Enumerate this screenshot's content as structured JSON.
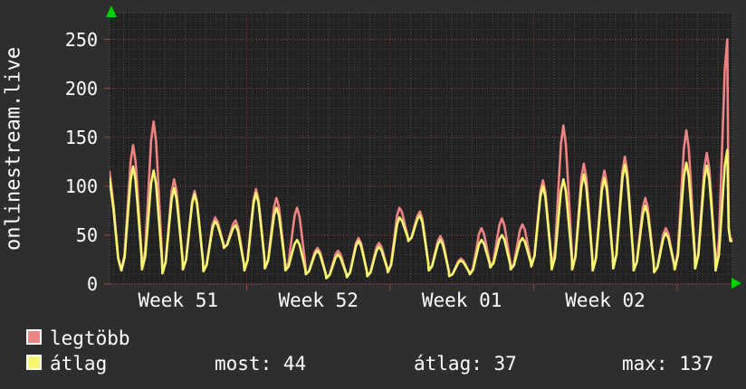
{
  "title_vertical": "onlinestream.live",
  "colors": {
    "background": "#2e2e2e",
    "plot_background": "#222222",
    "grid_minor": "#3e3e3e",
    "grid_day": "#585858",
    "grid_major_red": "#9e4343",
    "grid_week_red": "#8c3a3a",
    "axis_arrow_green": "#00d200",
    "text": "#ffffff",
    "series_max": "#f08383",
    "series_avg": "#f6f671"
  },
  "legend": {
    "series": [
      {
        "label": "legtöbb"
      },
      {
        "label": "átlag"
      }
    ],
    "stats": [
      {
        "label": "most",
        "value": 44,
        "text": "most: 44"
      },
      {
        "label": "átlag",
        "value": 37,
        "text": "átlag: 37"
      },
      {
        "label": "max",
        "value": 137,
        "text": "max: 137"
      }
    ]
  },
  "chart_data": {
    "type": "line",
    "title": "onlinestream.live",
    "ylabel": "onlinestream.live",
    "x_axis": {
      "tick_labels": [
        "Week 51",
        "Week 52",
        "Week 01",
        "Week 02"
      ],
      "days_total": 30.4,
      "first_day_boundary_offset": 0.694,
      "week_boundaries_days": [
        6.694,
        13.694,
        20.694,
        27.694
      ],
      "minor_step_days": 0.25
    },
    "y_axis": {
      "ticks": [
        0,
        50,
        100,
        150,
        200,
        250
      ],
      "ylim": [
        0,
        277
      ],
      "minor_step": 10,
      "grid": true
    },
    "legend_position": "bottom-left",
    "series": [
      {
        "name": "legtöbb",
        "color": "#f08383",
        "start": 115,
        "end": 46,
        "daily_peaks": [
          142,
          166,
          107,
          95,
          68,
          65,
          97,
          88,
          78,
          37,
          34,
          47,
          42,
          78,
          74,
          49,
          26,
          57,
          67,
          61,
          106,
          162,
          123,
          116,
          130,
          88,
          57,
          157,
          134,
          250
        ],
        "daily_valleys": [
          14,
          15,
          11,
          15,
          13,
          37,
          14,
          16,
          14,
          10,
          6,
          7,
          8,
          12,
          44,
          14,
          8,
          10,
          17,
          15,
          18,
          15,
          15,
          14,
          16,
          14,
          12,
          15,
          16,
          14
        ]
      },
      {
        "name": "átlag",
        "color": "#f6f671",
        "start": 108,
        "end": 44,
        "daily_peaks": [
          120,
          116,
          98,
          92,
          64,
          60,
          93,
          78,
          45,
          34,
          30,
          44,
          38,
          68,
          70,
          45,
          24,
          45,
          50,
          47,
          100,
          107,
          112,
          108,
          122,
          80,
          52,
          124,
          121,
          137
        ],
        "daily_valleys": [
          14,
          15,
          11,
          15,
          13,
          37,
          14,
          16,
          14,
          10,
          6,
          7,
          8,
          12,
          44,
          14,
          8,
          10,
          17,
          15,
          18,
          15,
          15,
          14,
          16,
          14,
          12,
          15,
          16,
          14
        ]
      }
    ],
    "summary": {
      "most": 44,
      "atlag": 37,
      "max": 137
    }
  }
}
